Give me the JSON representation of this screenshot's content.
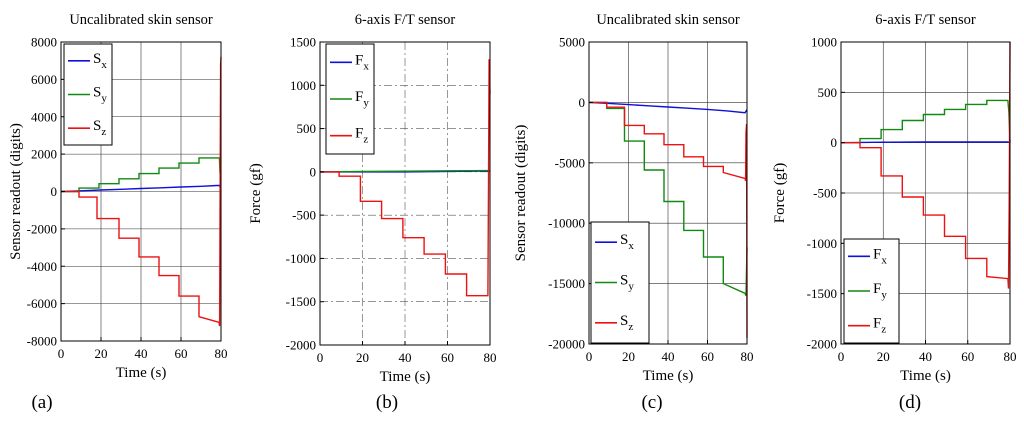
{
  "figure": {
    "panel_labels": [
      "(a)",
      "(b)",
      "(c)",
      "(d)"
    ]
  },
  "colors": {
    "x": "#1010dd",
    "y": "#108a10",
    "z": "#ee1111"
  },
  "chart_data": [
    {
      "type": "line",
      "title": "Uncalibrated skin sensor",
      "xlabel": "Time (s)",
      "ylabel": "Sensor readout (digits)",
      "xlim": [
        0,
        80
      ],
      "ylim": [
        -8000,
        8000
      ],
      "xticks": [
        0,
        20,
        40,
        60,
        80
      ],
      "xtick_labels": [
        "0",
        "20",
        "40",
        "60",
        "80"
      ],
      "yticks": [
        -8000,
        -6000,
        -4000,
        -2000,
        0,
        2000,
        4000,
        6000,
        8000
      ],
      "ytick_labels": [
        "-8000",
        "-6000",
        "-4000",
        "-2000",
        "0",
        "2000",
        "4000",
        "6000",
        "8000"
      ],
      "grid": "solid",
      "legend": {
        "placement": "top-left",
        "entries": [
          {
            "key": "x",
            "base": "S",
            "sub": "x"
          },
          {
            "key": "y",
            "base": "S",
            "sub": "y"
          },
          {
            "key": "z",
            "base": "S",
            "sub": "z"
          }
        ]
      },
      "series": [
        {
          "key": "x",
          "points": [
            [
              0,
              0
            ],
            [
              10,
              40
            ],
            [
              20,
              80
            ],
            [
              30,
              120
            ],
            [
              40,
              160
            ],
            [
              50,
              200
            ],
            [
              60,
              240
            ],
            [
              70,
              280
            ],
            [
              78,
              320
            ],
            [
              79.3,
              320
            ],
            [
              79.5,
              250
            ],
            [
              80,
              250
            ]
          ]
        },
        {
          "key": "y",
          "points": [
            [
              0,
              0
            ],
            [
              9,
              0
            ],
            [
              9,
              180
            ],
            [
              19,
              180
            ],
            [
              19,
              420
            ],
            [
              29,
              420
            ],
            [
              29,
              680
            ],
            [
              39,
              680
            ],
            [
              39,
              960
            ],
            [
              49,
              960
            ],
            [
              49,
              1250
            ],
            [
              59,
              1250
            ],
            [
              59,
              1520
            ],
            [
              69,
              1520
            ],
            [
              69,
              1800
            ],
            [
              79.2,
              1800
            ],
            [
              79.5,
              1000
            ],
            [
              80,
              700
            ]
          ]
        },
        {
          "key": "z",
          "points": [
            [
              0,
              0
            ],
            [
              9,
              0
            ],
            [
              9,
              -300
            ],
            [
              18,
              -300
            ],
            [
              18,
              -1450
            ],
            [
              29,
              -1450
            ],
            [
              29,
              -2500
            ],
            [
              39,
              -2500
            ],
            [
              39,
              -3500
            ],
            [
              49,
              -3500
            ],
            [
              49,
              -4500
            ],
            [
              59,
              -4500
            ],
            [
              59,
              -5600
            ],
            [
              69,
              -5600
            ],
            [
              69,
              -6700
            ],
            [
              79,
              -7000
            ],
            [
              79.3,
              -7200
            ],
            [
              79.5,
              -1500
            ],
            [
              79.8,
              6800
            ],
            [
              80,
              7200
            ]
          ]
        }
      ]
    },
    {
      "type": "line",
      "title": "6-axis F/T sensor",
      "xlabel": "Time (s)",
      "ylabel": "Force (gf)",
      "xlim": [
        0,
        80
      ],
      "ylim": [
        -2000,
        1500
      ],
      "xticks": [
        0,
        20,
        40,
        60,
        80
      ],
      "xtick_labels": [
        "0",
        "20",
        "40",
        "60",
        "80"
      ],
      "yticks": [
        -2000,
        -1500,
        -1000,
        -500,
        0,
        500,
        1000,
        1500
      ],
      "ytick_labels": [
        "-2000",
        "-1500",
        "-1000",
        "-500",
        "0",
        "500",
        "1000",
        "1500"
      ],
      "grid": "dashed",
      "legend": {
        "placement": "top-left",
        "entries": [
          {
            "key": "x",
            "base": "F",
            "sub": "x"
          },
          {
            "key": "y",
            "base": "F",
            "sub": "y"
          },
          {
            "key": "z",
            "base": "F",
            "sub": "z"
          }
        ]
      },
      "series": [
        {
          "key": "x",
          "points": [
            [
              0,
              0
            ],
            [
              20,
              0
            ],
            [
              40,
              0
            ],
            [
              60,
              5
            ],
            [
              79,
              10
            ],
            [
              80,
              10
            ]
          ]
        },
        {
          "key": "y",
          "points": [
            [
              0,
              0
            ],
            [
              20,
              5
            ],
            [
              40,
              8
            ],
            [
              60,
              12
            ],
            [
              79,
              15
            ],
            [
              80,
              15
            ]
          ]
        },
        {
          "key": "z",
          "points": [
            [
              0,
              0
            ],
            [
              9,
              0
            ],
            [
              9,
              -50
            ],
            [
              19,
              -50
            ],
            [
              19,
              -340
            ],
            [
              29,
              -340
            ],
            [
              29,
              -540
            ],
            [
              39,
              -540
            ],
            [
              39,
              -760
            ],
            [
              49,
              -760
            ],
            [
              49,
              -950
            ],
            [
              59,
              -950
            ],
            [
              59,
              -1180
            ],
            [
              69,
              -1180
            ],
            [
              69,
              -1430
            ],
            [
              79,
              -1430
            ],
            [
              79.3,
              -150
            ],
            [
              79.6,
              1300
            ],
            [
              80,
              900
            ]
          ]
        }
      ]
    },
    {
      "type": "line",
      "title": "Uncalibrated skin sensor",
      "xlabel": "Time (s)",
      "ylabel": "Sensor readout (digits)",
      "xlim": [
        0,
        80
      ],
      "ylim": [
        -20000,
        5000
      ],
      "xticks": [
        0,
        20,
        40,
        60,
        80
      ],
      "xtick_labels": [
        "0",
        "20",
        "40",
        "60",
        "80"
      ],
      "yticks": [
        -20000,
        -15000,
        -10000,
        -5000,
        0,
        5000
      ],
      "ytick_labels": [
        "-20000",
        "-15000",
        "-10000",
        "-5000",
        "0",
        "5000"
      ],
      "grid": "solid",
      "legend": {
        "placement": "bottom-left",
        "entries": [
          {
            "key": "x",
            "base": "S",
            "sub": "x"
          },
          {
            "key": "y",
            "base": "S",
            "sub": "y"
          },
          {
            "key": "z",
            "base": "S",
            "sub": "z"
          }
        ]
      },
      "series": [
        {
          "key": "x",
          "points": [
            [
              0,
              0
            ],
            [
              10,
              -80
            ],
            [
              20,
              -180
            ],
            [
              30,
              -280
            ],
            [
              40,
              -380
            ],
            [
              50,
              -480
            ],
            [
              60,
              -580
            ],
            [
              70,
              -700
            ],
            [
              79,
              -850
            ],
            [
              80,
              -600
            ]
          ]
        },
        {
          "key": "y",
          "points": [
            [
              0,
              0
            ],
            [
              9,
              0
            ],
            [
              9,
              -500
            ],
            [
              18,
              -500
            ],
            [
              18,
              -3200
            ],
            [
              28,
              -3200
            ],
            [
              28,
              -5600
            ],
            [
              38,
              -5600
            ],
            [
              38,
              -8200
            ],
            [
              48,
              -8200
            ],
            [
              48,
              -10600
            ],
            [
              58,
              -10600
            ],
            [
              58,
              -12800
            ],
            [
              68,
              -12800
            ],
            [
              68,
              -15000
            ],
            [
              79,
              -15800
            ],
            [
              79.5,
              -16000
            ],
            [
              80,
              -12000
            ]
          ]
        },
        {
          "key": "z",
          "points": [
            [
              0,
              0
            ],
            [
              9,
              0
            ],
            [
              9,
              -400
            ],
            [
              18,
              -400
            ],
            [
              18,
              -1900
            ],
            [
              28,
              -1900
            ],
            [
              28,
              -2600
            ],
            [
              38,
              -2600
            ],
            [
              38,
              -3500
            ],
            [
              48,
              -3500
            ],
            [
              48,
              -4500
            ],
            [
              58,
              -4500
            ],
            [
              58,
              -5300
            ],
            [
              68,
              -5300
            ],
            [
              68,
              -5800
            ],
            [
              79,
              -6300
            ],
            [
              79.3,
              -6500
            ],
            [
              79.5,
              -2500
            ],
            [
              79.8,
              -1800
            ],
            [
              80,
              -19500
            ]
          ]
        }
      ]
    },
    {
      "type": "line",
      "title": "6-axis F/T sensor",
      "xlabel": "Time (s)",
      "ylabel": "Force (gf)",
      "xlim": [
        0,
        80
      ],
      "ylim": [
        -2000,
        1000
      ],
      "xticks": [
        0,
        20,
        40,
        60,
        80
      ],
      "xtick_labels": [
        "0",
        "20",
        "40",
        "60",
        "80"
      ],
      "yticks": [
        -2000,
        -1500,
        -1000,
        -500,
        0,
        500,
        1000
      ],
      "ytick_labels": [
        "-2000",
        "-1500",
        "-1000",
        "-500",
        "0",
        "500",
        "1000"
      ],
      "grid": "solid",
      "legend": {
        "placement": "bottom-left",
        "entries": [
          {
            "key": "x",
            "base": "F",
            "sub": "x"
          },
          {
            "key": "y",
            "base": "F",
            "sub": "y"
          },
          {
            "key": "z",
            "base": "F",
            "sub": "z"
          }
        ]
      },
      "series": [
        {
          "key": "x",
          "points": [
            [
              0,
              0
            ],
            [
              20,
              5
            ],
            [
              40,
              8
            ],
            [
              60,
              8
            ],
            [
              79,
              8
            ],
            [
              80,
              0
            ]
          ]
        },
        {
          "key": "y",
          "points": [
            [
              0,
              0
            ],
            [
              9,
              0
            ],
            [
              9,
              40
            ],
            [
              19,
              40
            ],
            [
              19,
              130
            ],
            [
              29,
              130
            ],
            [
              29,
              220
            ],
            [
              39,
              220
            ],
            [
              39,
              280
            ],
            [
              49,
              280
            ],
            [
              49,
              330
            ],
            [
              59,
              330
            ],
            [
              59,
              380
            ],
            [
              69,
              380
            ],
            [
              69,
              420
            ],
            [
              79,
              420
            ],
            [
              79.5,
              300
            ],
            [
              80,
              0
            ]
          ]
        },
        {
          "key": "z",
          "points": [
            [
              0,
              0
            ],
            [
              9,
              0
            ],
            [
              9,
              -50
            ],
            [
              19,
              -50
            ],
            [
              19,
              -330
            ],
            [
              29,
              -330
            ],
            [
              29,
              -540
            ],
            [
              39,
              -540
            ],
            [
              39,
              -720
            ],
            [
              49,
              -720
            ],
            [
              49,
              -930
            ],
            [
              59,
              -930
            ],
            [
              59,
              -1150
            ],
            [
              69,
              -1150
            ],
            [
              69,
              -1330
            ],
            [
              79,
              -1350
            ],
            [
              79.3,
              -1450
            ],
            [
              79.6,
              -600
            ],
            [
              80,
              1000
            ]
          ]
        }
      ]
    }
  ]
}
